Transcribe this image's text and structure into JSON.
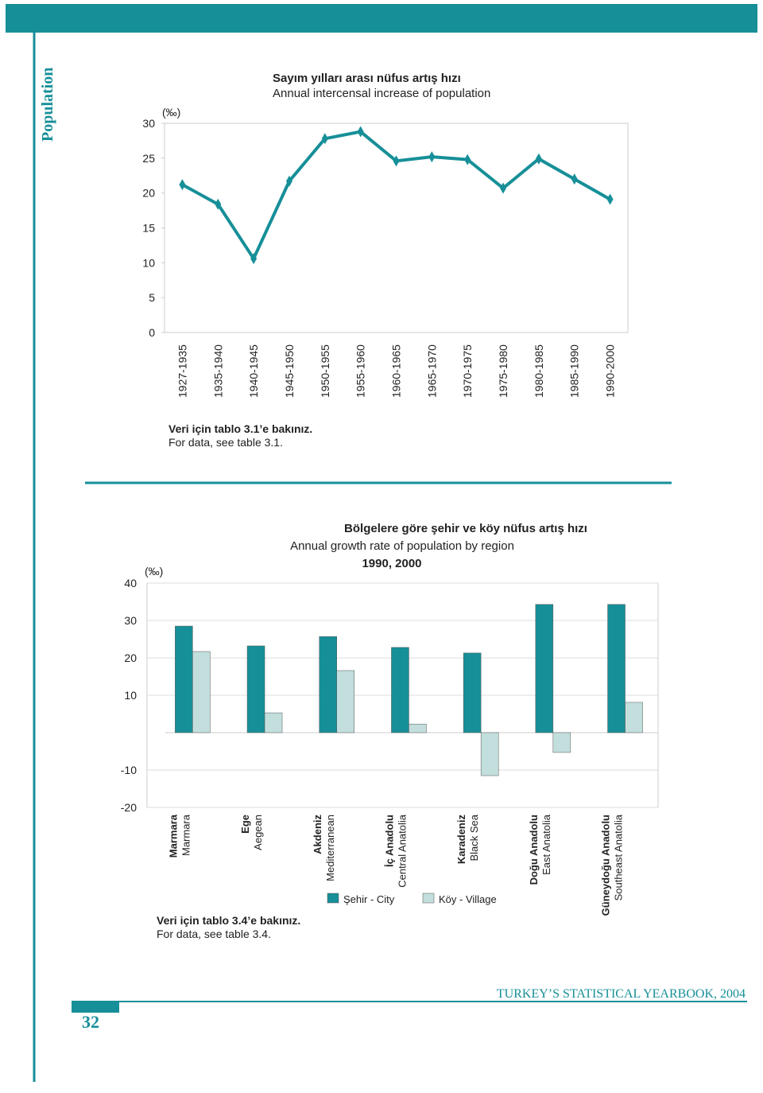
{
  "page": {
    "section": "Population",
    "footer": "TURKEY’S STATISTICAL YEARBOOK, 2004",
    "page_number": "32"
  },
  "chart_data": [
    {
      "type": "line",
      "title": "Sayım yılları arası nüfus artış hızı",
      "subtitle": "Annual intercensal increase of population",
      "y_label": "(‰)",
      "note": "Veri için tablo 3.1’e bakınız.",
      "note_en": "For data, see table 3.1.",
      "categories": [
        "1927-1935",
        "1935-1940",
        "1940-1945",
        "1945-1950",
        "1950-1955",
        "1955-1960",
        "1960-1965",
        "1965-1970",
        "1970-1975",
        "1975-1980",
        "1980-1985",
        "1985-1990",
        "1990-2000"
      ],
      "values": [
        21.2,
        18.4,
        10.6,
        21.7,
        27.8,
        28.8,
        24.6,
        25.2,
        24.8,
        20.7,
        24.9,
        22.0,
        19.1
      ],
      "color": "#168f98",
      "ylim": [
        0,
        30
      ],
      "yticks": [
        0,
        5,
        10,
        15,
        20,
        25,
        30
      ]
    },
    {
      "type": "bar",
      "title": "Bölgelere göre şehir ve köy nüfus artış hızı",
      "subtitle": "Annual growth rate of population by region",
      "years": "1990, 2000",
      "y_label": "(‰)",
      "note": "Veri için tablo 3.4’e bakınız.",
      "note_en": "For data, see table 3.4.",
      "categories": [
        "Marmara",
        "Ege",
        "Akdeniz",
        "İç Anadolu",
        "Karadeniz",
        "Doğu Anadolu",
        "Güneydoğu Anadolu"
      ],
      "categories_en": [
        "Marmara",
        "Aegean",
        "Mediterranean",
        "Central Anatolia",
        "Black Sea",
        "East Anatolia",
        "Southeast Anatolia"
      ],
      "series": [
        {
          "name": "Şehir - City",
          "color": "#168f98",
          "values": [
            28.5,
            23.2,
            25.7,
            22.8,
            21.3,
            34.3,
            34.3
          ]
        },
        {
          "name": "Köy - Village",
          "color": "#c2dedd",
          "values": [
            21.7,
            5.3,
            16.6,
            2.3,
            -11.5,
            -5.3,
            8.1
          ]
        }
      ],
      "ylim": [
        -20,
        40
      ],
      "yticks": [
        -20,
        -10,
        10,
        20,
        30,
        40
      ]
    }
  ]
}
